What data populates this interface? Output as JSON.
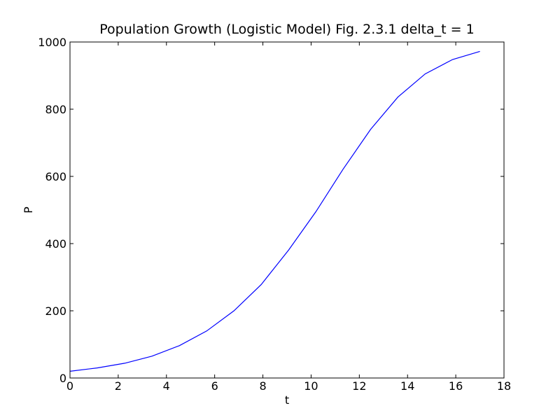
{
  "chart_data": {
    "type": "line",
    "title": "Population Growth (Logistic Model) Fig. 2.3.1 delta_t = 1",
    "xlabel": "t",
    "ylabel": "P",
    "xlim": [
      0,
      18
    ],
    "ylim": [
      0,
      1000
    ],
    "xticks": [
      "0",
      "2",
      "4",
      "6",
      "8",
      "10",
      "12",
      "14",
      "16",
      "18"
    ],
    "yticks": [
      "0",
      "200",
      "400",
      "600",
      "800",
      "1000"
    ],
    "grid": false,
    "series": [
      {
        "color": "#0000ff",
        "x": [
          0,
          1.13,
          2.27,
          3.4,
          4.53,
          5.67,
          6.8,
          7.93,
          9.07,
          10.2,
          11.33,
          12.47,
          13.6,
          14.73,
          15.87,
          17
        ],
        "y": [
          20,
          30,
          44,
          65,
          96,
          140,
          200,
          278,
          381,
          495,
          622,
          740,
          836,
          905,
          948,
          972
        ]
      }
    ]
  }
}
